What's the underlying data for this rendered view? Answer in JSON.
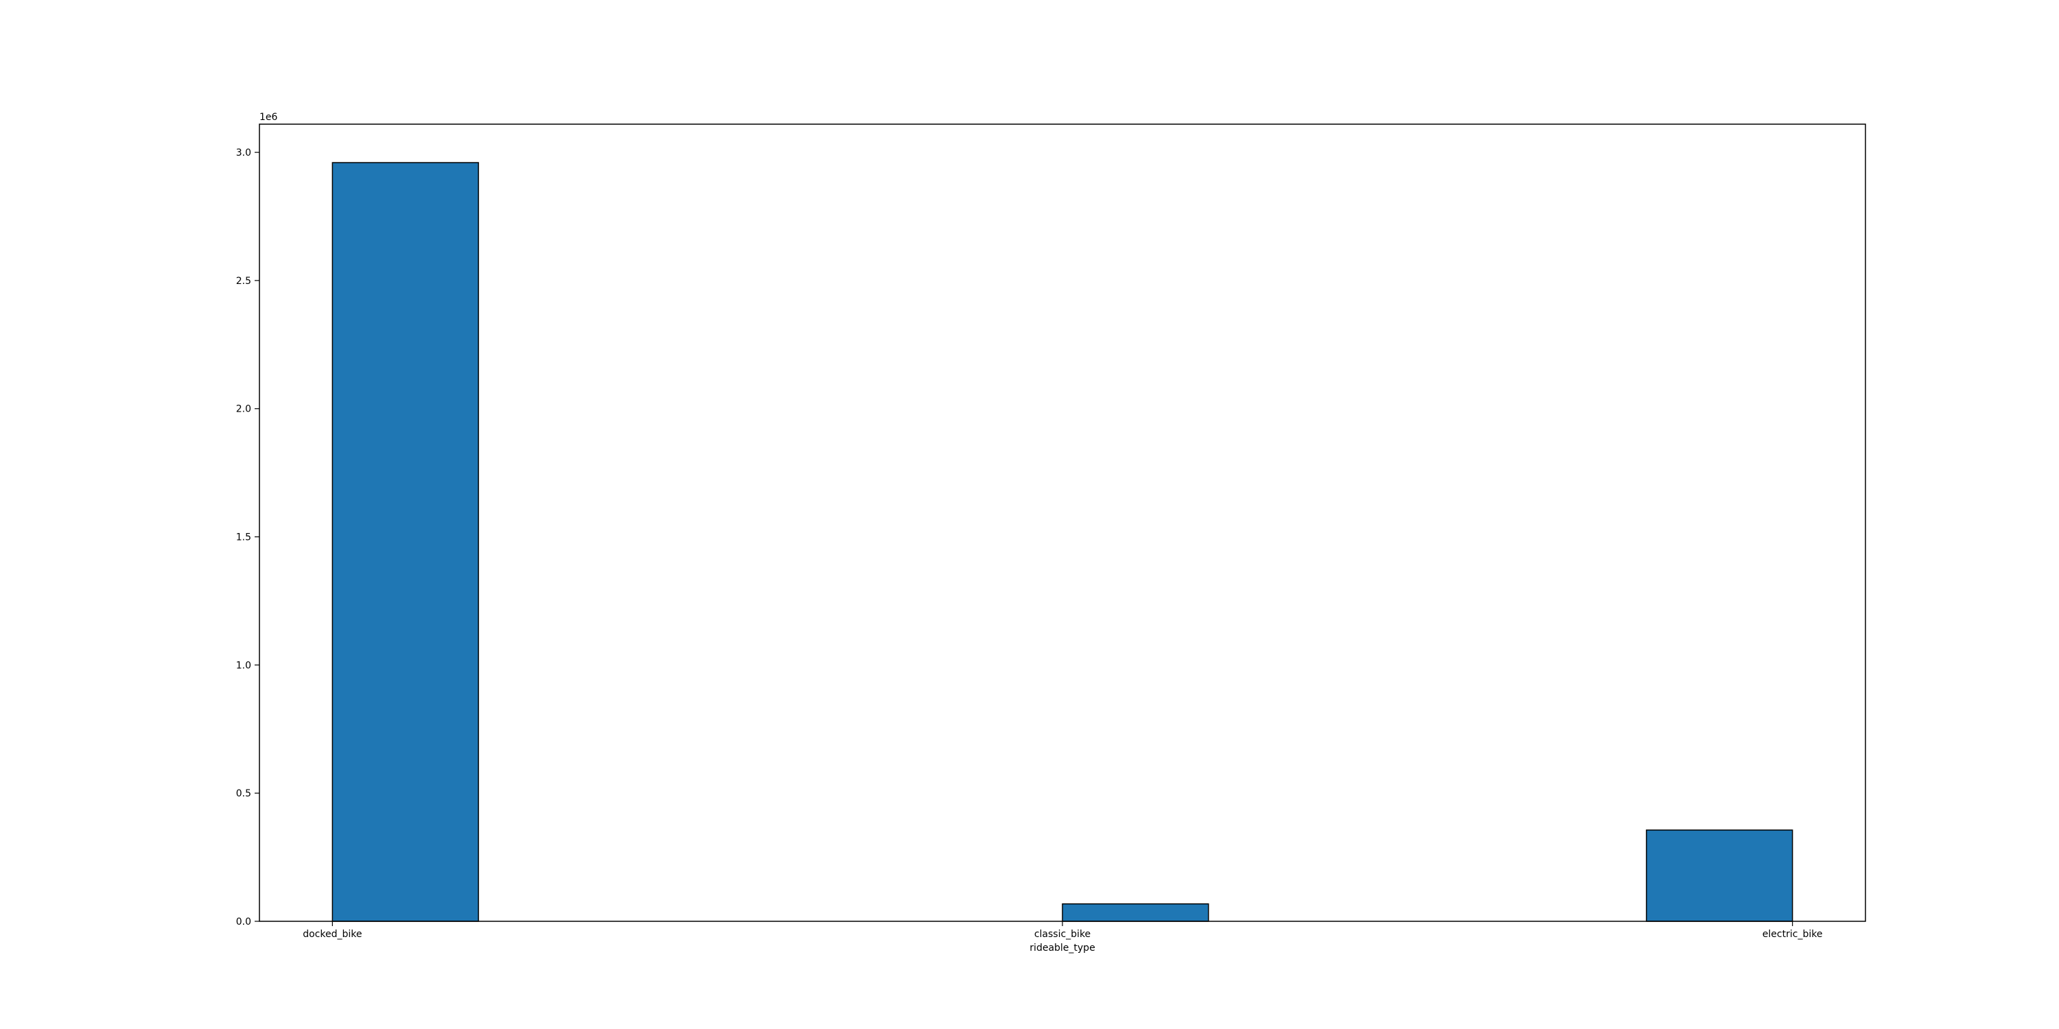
{
  "chart_data": {
    "type": "bar",
    "categories": [
      "docked_bike",
      "classic_bike",
      "electric_bike"
    ],
    "x_positions": [
      0,
      1,
      2
    ],
    "bars": [
      {
        "left": 0.0,
        "right": 0.2,
        "value": 2960000
      },
      {
        "left": 1.0,
        "right": 1.2,
        "value": 68000
      },
      {
        "left": 1.8,
        "right": 2.0,
        "value": 356000
      }
    ],
    "title": "",
    "xlabel": "rideable_type",
    "ylabel": "",
    "ylim": [
      0,
      3110000
    ],
    "xlim": [
      -0.1,
      2.1
    ],
    "yticks": [
      0,
      500000,
      1000000,
      1500000,
      2000000,
      2500000,
      3000000
    ],
    "ytick_labels": [
      "0.0",
      "0.5",
      "1.0",
      "1.5",
      "2.0",
      "2.5",
      "3.0"
    ],
    "y_offset_text": "1e6",
    "grid": false,
    "colors": {
      "bar_fill": "#1f77b4",
      "bar_edge": "#000000"
    }
  }
}
